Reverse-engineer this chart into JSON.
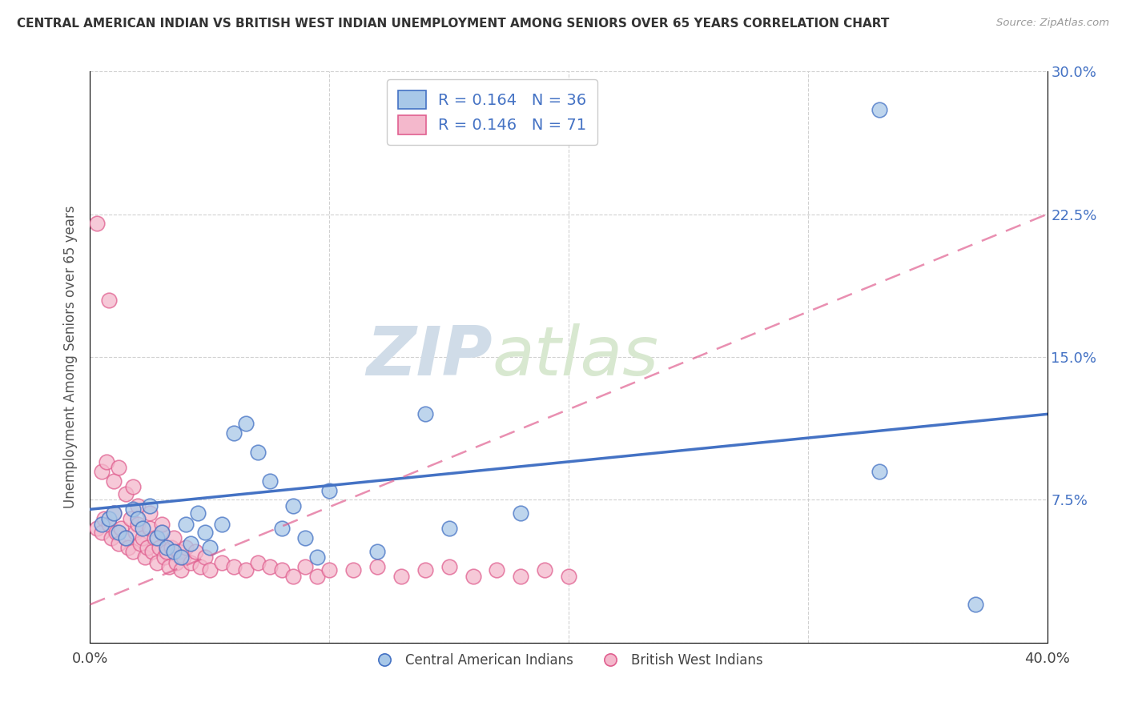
{
  "title": "CENTRAL AMERICAN INDIAN VS BRITISH WEST INDIAN UNEMPLOYMENT AMONG SENIORS OVER 65 YEARS CORRELATION CHART",
  "source": "Source: ZipAtlas.com",
  "ylabel": "Unemployment Among Seniors over 65 years",
  "xlim": [
    0.0,
    0.4
  ],
  "ylim": [
    0.0,
    0.3
  ],
  "xticks": [
    0.0,
    0.1,
    0.2,
    0.3,
    0.4
  ],
  "yticks": [
    0.0,
    0.075,
    0.15,
    0.225,
    0.3
  ],
  "xticklabels": [
    "0.0%",
    "",
    "",
    "",
    "40.0%"
  ],
  "yticklabels_right": [
    "",
    "7.5%",
    "15.0%",
    "22.5%",
    "30.0%"
  ],
  "watermark_zip": "ZIP",
  "watermark_atlas": "atlas",
  "legend_r1": "0.164",
  "legend_n1": "36",
  "legend_r2": "0.146",
  "legend_n2": "71",
  "color_blue": "#a8c8e8",
  "color_pink": "#f4b8cc",
  "color_blue_dark": "#4472c4",
  "color_pink_dark": "#e06090",
  "background": "#ffffff",
  "grid_color": "#cccccc",
  "label_blue": "Central American Indians",
  "label_pink": "British West Indians",
  "cai_trend_x0": 0.0,
  "cai_trend_y0": 0.07,
  "cai_trend_x1": 0.4,
  "cai_trend_y1": 0.12,
  "bwi_trend_x0": 0.0,
  "bwi_trend_y0": 0.02,
  "bwi_trend_x1": 0.4,
  "bwi_trend_y1": 0.225,
  "cai_x": [
    0.005,
    0.008,
    0.01,
    0.012,
    0.015,
    0.018,
    0.02,
    0.022,
    0.025,
    0.028,
    0.03,
    0.032,
    0.035,
    0.038,
    0.04,
    0.042,
    0.045,
    0.048,
    0.05,
    0.055,
    0.06,
    0.065,
    0.07,
    0.075,
    0.08,
    0.085,
    0.09,
    0.095,
    0.1,
    0.12,
    0.15,
    0.18,
    0.33,
    0.37,
    0.33,
    0.14
  ],
  "cai_y": [
    0.062,
    0.065,
    0.068,
    0.058,
    0.055,
    0.07,
    0.065,
    0.06,
    0.072,
    0.055,
    0.058,
    0.05,
    0.048,
    0.045,
    0.062,
    0.052,
    0.068,
    0.058,
    0.05,
    0.062,
    0.11,
    0.115,
    0.1,
    0.085,
    0.06,
    0.072,
    0.055,
    0.045,
    0.08,
    0.048,
    0.06,
    0.068,
    0.28,
    0.02,
    0.09,
    0.12
  ],
  "bwi_x": [
    0.003,
    0.005,
    0.006,
    0.008,
    0.009,
    0.01,
    0.011,
    0.012,
    0.013,
    0.015,
    0.016,
    0.017,
    0.018,
    0.019,
    0.02,
    0.021,
    0.022,
    0.023,
    0.024,
    0.025,
    0.026,
    0.027,
    0.028,
    0.029,
    0.03,
    0.031,
    0.032,
    0.033,
    0.034,
    0.035,
    0.036,
    0.037,
    0.038,
    0.039,
    0.04,
    0.042,
    0.044,
    0.046,
    0.048,
    0.05,
    0.055,
    0.06,
    0.065,
    0.07,
    0.075,
    0.08,
    0.085,
    0.09,
    0.095,
    0.1,
    0.11,
    0.12,
    0.13,
    0.14,
    0.15,
    0.16,
    0.17,
    0.18,
    0.19,
    0.2,
    0.003,
    0.008,
    0.005,
    0.007,
    0.01,
    0.012,
    0.015,
    0.018,
    0.02,
    0.025,
    0.03
  ],
  "bwi_y": [
    0.06,
    0.058,
    0.065,
    0.062,
    0.055,
    0.068,
    0.058,
    0.052,
    0.06,
    0.055,
    0.05,
    0.065,
    0.048,
    0.058,
    0.062,
    0.052,
    0.055,
    0.045,
    0.05,
    0.06,
    0.048,
    0.055,
    0.042,
    0.05,
    0.058,
    0.045,
    0.048,
    0.04,
    0.05,
    0.055,
    0.042,
    0.048,
    0.038,
    0.045,
    0.05,
    0.042,
    0.048,
    0.04,
    0.045,
    0.038,
    0.042,
    0.04,
    0.038,
    0.042,
    0.04,
    0.038,
    0.035,
    0.04,
    0.035,
    0.038,
    0.038,
    0.04,
    0.035,
    0.038,
    0.04,
    0.035,
    0.038,
    0.035,
    0.038,
    0.035,
    0.22,
    0.18,
    0.09,
    0.095,
    0.085,
    0.092,
    0.078,
    0.082,
    0.072,
    0.068,
    0.062
  ]
}
